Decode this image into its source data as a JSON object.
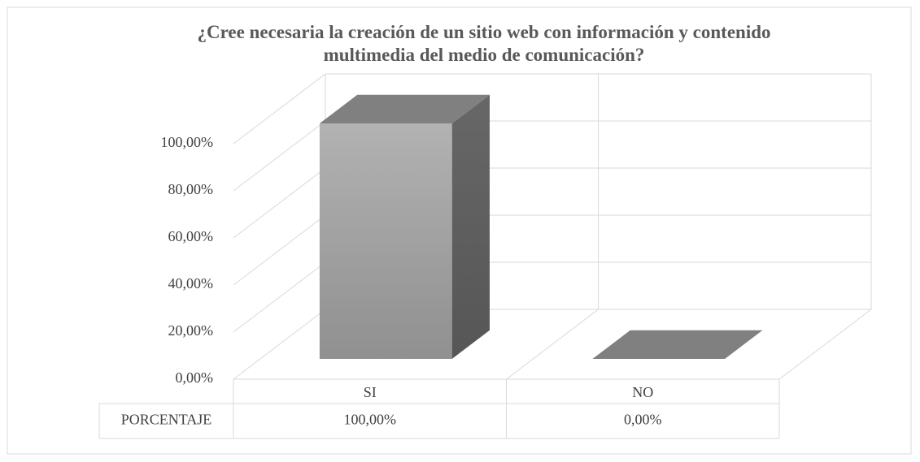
{
  "chart_data": {
    "type": "bar3d",
    "title": "¿Cree necesaria la creación de un sitio web con información y contenido multimedia del medio de comunicación?",
    "categories": [
      "SI",
      "NO"
    ],
    "series": [
      {
        "name": "PORCENTAJE",
        "color": "#a6a6a6",
        "values": [
          100,
          0
        ],
        "value_labels": [
          "100,00%",
          "0,00%"
        ]
      }
    ],
    "ylim": [
      0,
      100
    ],
    "yticks": [
      {
        "value": 0,
        "label": "0,00%"
      },
      {
        "value": 20,
        "label": "20,00%"
      },
      {
        "value": 40,
        "label": "40,00%"
      },
      {
        "value": 60,
        "label": "60,00%"
      },
      {
        "value": 80,
        "label": "80,00%"
      },
      {
        "value": 100,
        "label": "100,00%"
      }
    ],
    "grid": true,
    "data_table": true
  }
}
